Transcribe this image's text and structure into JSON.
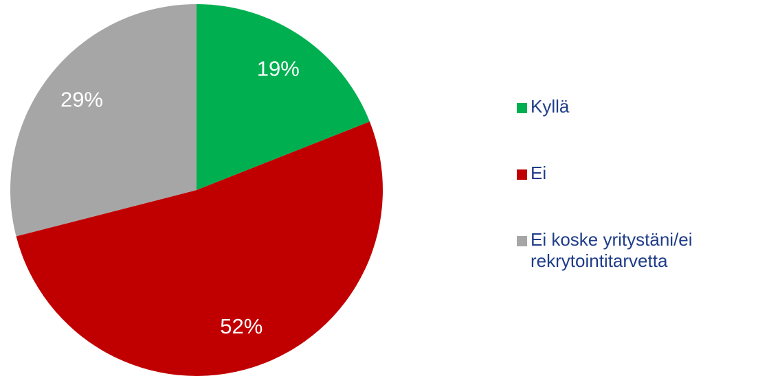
{
  "chart_data": {
    "type": "pie",
    "categories": [
      "Kyllä",
      "Ei",
      "Ei koske yritystäni/ei rekrytointitarvetta"
    ],
    "values": [
      19,
      52,
      29
    ],
    "value_labels": [
      "19%",
      "52%",
      "29%"
    ],
    "colors": [
      "#00b050",
      "#c00000",
      "#a6a6a6"
    ],
    "legend": "right"
  }
}
